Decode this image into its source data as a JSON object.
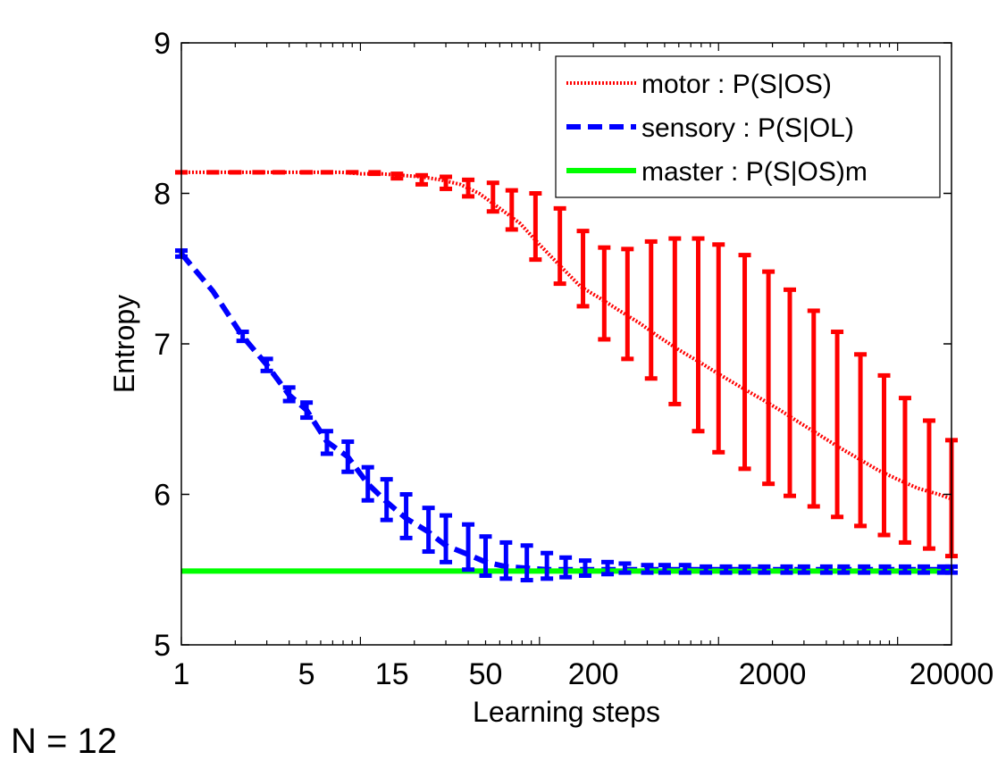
{
  "chart_data": {
    "type": "line",
    "xlabel": "Learning steps",
    "ylabel": "Entropy",
    "x_scale": "log",
    "xlim": [
      1,
      20000
    ],
    "ylim": [
      5,
      9
    ],
    "x_ticks": [
      1,
      5,
      15,
      50,
      200,
      2000,
      20000
    ],
    "x_tick_labels": [
      "1",
      "5",
      "15",
      "50",
      "200",
      "2000",
      "20000"
    ],
    "y_ticks": [
      5,
      6,
      7,
      8,
      9
    ],
    "y_tick_labels": [
      "5",
      "6",
      "7",
      "8",
      "9"
    ],
    "grid": false,
    "legend_position": "top-right",
    "series": [
      {
        "name": "motor : P(S|OS)",
        "color": "#ff0000",
        "style": "dotted",
        "x": [
          1,
          1.3,
          1.7,
          2.2,
          2.8,
          3.6,
          4.6,
          6,
          7.8,
          10,
          13,
          17,
          22,
          28,
          36,
          46,
          60,
          78,
          100,
          130,
          170,
          220,
          280,
          360,
          460,
          600,
          780,
          1000,
          1300,
          1700,
          2200,
          2800,
          3600,
          4600,
          6000,
          7800,
          10000,
          13000,
          17000,
          20000
        ],
        "y": [
          8.14,
          8.14,
          8.14,
          8.14,
          8.14,
          8.14,
          8.14,
          8.14,
          8.14,
          8.13,
          8.13,
          8.12,
          8.11,
          8.09,
          8.06,
          8.0,
          7.9,
          7.8,
          7.66,
          7.52,
          7.38,
          7.3,
          7.22,
          7.14,
          7.05,
          6.96,
          6.88,
          6.8,
          6.72,
          6.64,
          6.56,
          6.48,
          6.4,
          6.32,
          6.24,
          6.16,
          6.1,
          6.04,
          6.0,
          5.97
        ]
      },
      {
        "name": "sensory : P(S|OL)",
        "color": "#0000ff",
        "style": "dashed",
        "x": [
          1,
          1.5,
          2.2,
          3,
          4,
          5,
          6.5,
          8.5,
          11,
          14,
          18,
          24,
          30,
          40,
          50,
          65,
          85,
          110,
          140,
          180,
          240,
          300,
          400,
          500,
          650,
          850,
          1100,
          1400,
          1800,
          2400,
          3000,
          4000,
          5000,
          6500,
          8500,
          11000,
          14000,
          18000,
          20000
        ],
        "y": [
          7.6,
          7.35,
          7.05,
          6.86,
          6.66,
          6.56,
          6.35,
          6.25,
          6.07,
          5.95,
          5.84,
          5.75,
          5.66,
          5.6,
          5.55,
          5.52,
          5.51,
          5.5,
          5.5,
          5.5,
          5.5,
          5.5,
          5.5,
          5.5,
          5.5,
          5.5,
          5.5,
          5.5,
          5.5,
          5.5,
          5.5,
          5.5,
          5.5,
          5.5,
          5.5,
          5.5,
          5.5,
          5.5,
          5.5
        ]
      },
      {
        "name": "master : P(S|OS)m",
        "color": "#00ff00",
        "style": "solid",
        "x": [
          1,
          20000
        ],
        "y": [
          5.49,
          5.49
        ]
      }
    ],
    "error_bars": [
      {
        "series": "motor : P(S|OS)",
        "x": [
          1,
          1.5,
          2,
          2.7,
          3.5,
          5,
          6.5,
          9,
          12,
          16,
          22,
          30,
          40,
          55,
          70,
          95,
          130,
          175,
          230,
          310,
          420,
          570,
          770,
          1000,
          1400,
          1900,
          2500,
          3400,
          4600,
          6200,
          8400,
          11000,
          15000,
          20000
        ],
        "lower": [
          8.14,
          8.14,
          8.14,
          8.14,
          8.14,
          8.14,
          8.14,
          8.14,
          8.13,
          8.1,
          8.06,
          8.03,
          7.98,
          7.88,
          7.76,
          7.56,
          7.4,
          7.25,
          7.03,
          6.9,
          6.77,
          6.6,
          6.42,
          6.28,
          6.17,
          6.07,
          5.99,
          5.92,
          5.85,
          5.79,
          5.73,
          5.68,
          5.64,
          5.59
        ],
        "upper": [
          8.14,
          8.14,
          8.14,
          8.14,
          8.14,
          8.14,
          8.14,
          8.14,
          8.14,
          8.13,
          8.12,
          8.11,
          8.09,
          8.07,
          8.02,
          8.0,
          7.9,
          7.75,
          7.64,
          7.63,
          7.68,
          7.7,
          7.7,
          7.66,
          7.59,
          7.48,
          7.36,
          7.22,
          7.08,
          6.93,
          6.79,
          6.64,
          6.49,
          6.36
        ]
      },
      {
        "series": "sensory : P(S|OL)",
        "x": [
          1,
          2.2,
          3,
          4,
          5,
          6.5,
          8.5,
          11,
          14,
          18,
          24,
          30,
          40,
          50,
          65,
          85,
          110,
          140,
          180,
          240,
          300,
          400,
          500,
          650,
          850,
          1100,
          1400,
          1800,
          2400,
          3000,
          4000,
          5000,
          6500,
          8500,
          11000,
          14000,
          18000,
          20000
        ],
        "lower": [
          7.58,
          7.02,
          6.82,
          6.62,
          6.51,
          6.27,
          6.15,
          5.96,
          5.83,
          5.71,
          5.62,
          5.55,
          5.5,
          5.46,
          5.44,
          5.43,
          5.44,
          5.45,
          5.46,
          5.47,
          5.48,
          5.48,
          5.48,
          5.48,
          5.48,
          5.48,
          5.48,
          5.48,
          5.48,
          5.48,
          5.48,
          5.48,
          5.48,
          5.48,
          5.48,
          5.48,
          5.48,
          5.48
        ],
        "upper": [
          7.62,
          7.08,
          6.9,
          6.71,
          6.61,
          6.42,
          6.35,
          6.18,
          6.1,
          6.0,
          5.91,
          5.86,
          5.8,
          5.72,
          5.68,
          5.66,
          5.61,
          5.58,
          5.56,
          5.55,
          5.54,
          5.53,
          5.53,
          5.53,
          5.52,
          5.52,
          5.52,
          5.52,
          5.52,
          5.52,
          5.52,
          5.52,
          5.52,
          5.52,
          5.52,
          5.52,
          5.52,
          5.52
        ]
      }
    ]
  },
  "note": "N = 12"
}
